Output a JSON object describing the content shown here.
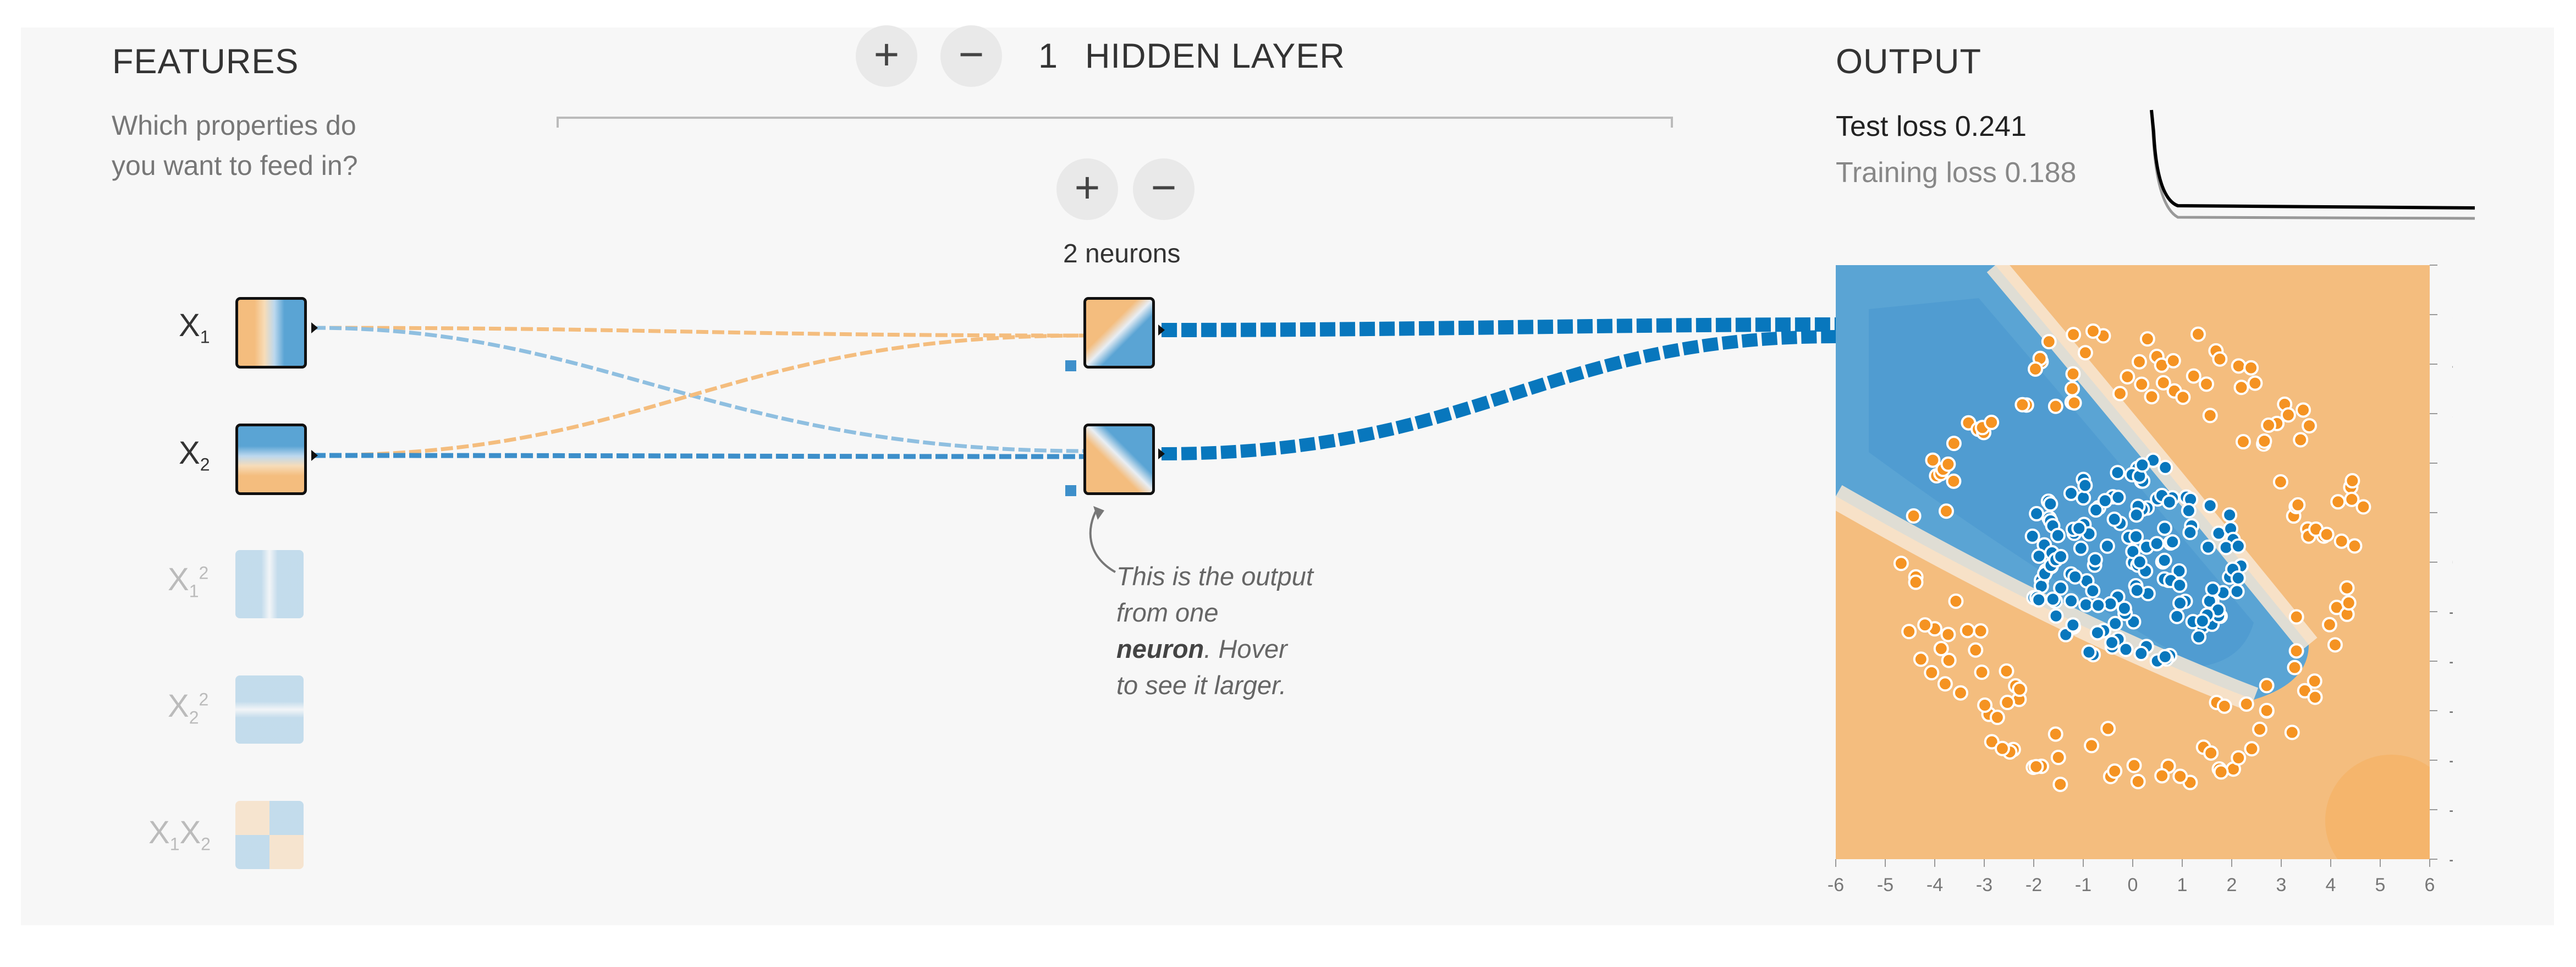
{
  "features": {
    "title": "FEATURES",
    "subtitle_line1": "Which properties do",
    "subtitle_line2": "you want to feed in?",
    "items": [
      {
        "base": "X",
        "sub": "1",
        "sup": "",
        "active": true
      },
      {
        "base": "X",
        "sub": "2",
        "sup": "",
        "active": true
      },
      {
        "base": "X",
        "sub": "1",
        "sup": "2",
        "active": false
      },
      {
        "base": "X",
        "sub": "2",
        "sup": "2",
        "active": false
      },
      {
        "base": "X",
        "sub": "1",
        "base2": "X",
        "sub2": "2",
        "active": false
      }
    ]
  },
  "layers": {
    "add_symbol": "+",
    "remove_symbol": "−",
    "count": "1",
    "label": "HIDDEN LAYER",
    "neurons_label": "2 neurons"
  },
  "annotation": {
    "line1": "This is the output",
    "line2": "from one",
    "line3_bold": "neuron",
    "line3_rest": ". Hover",
    "line4": "to see it larger."
  },
  "output": {
    "title": "OUTPUT",
    "test_loss_label": "Test loss",
    "test_loss_value": "0.241",
    "training_loss_label": "Training loss",
    "training_loss_value": "0.188",
    "x_ticks": [
      "-6",
      "-5",
      "-4",
      "-3",
      "-2",
      "-1",
      "0",
      "1",
      "2",
      "3",
      "4",
      "5",
      "6"
    ],
    "y_ticks": [
      "6",
      "5",
      "4",
      "3",
      "2",
      "1",
      "0",
      "-1",
      "-2",
      "-3",
      "-4",
      "-5",
      "-6"
    ]
  },
  "colors": {
    "blue": "#0877bd",
    "orange": "#f59322",
    "light_blue": "#5aa4d4",
    "light_orange": "#f4bd7e",
    "panel_bg": "#f7f7f7"
  }
}
